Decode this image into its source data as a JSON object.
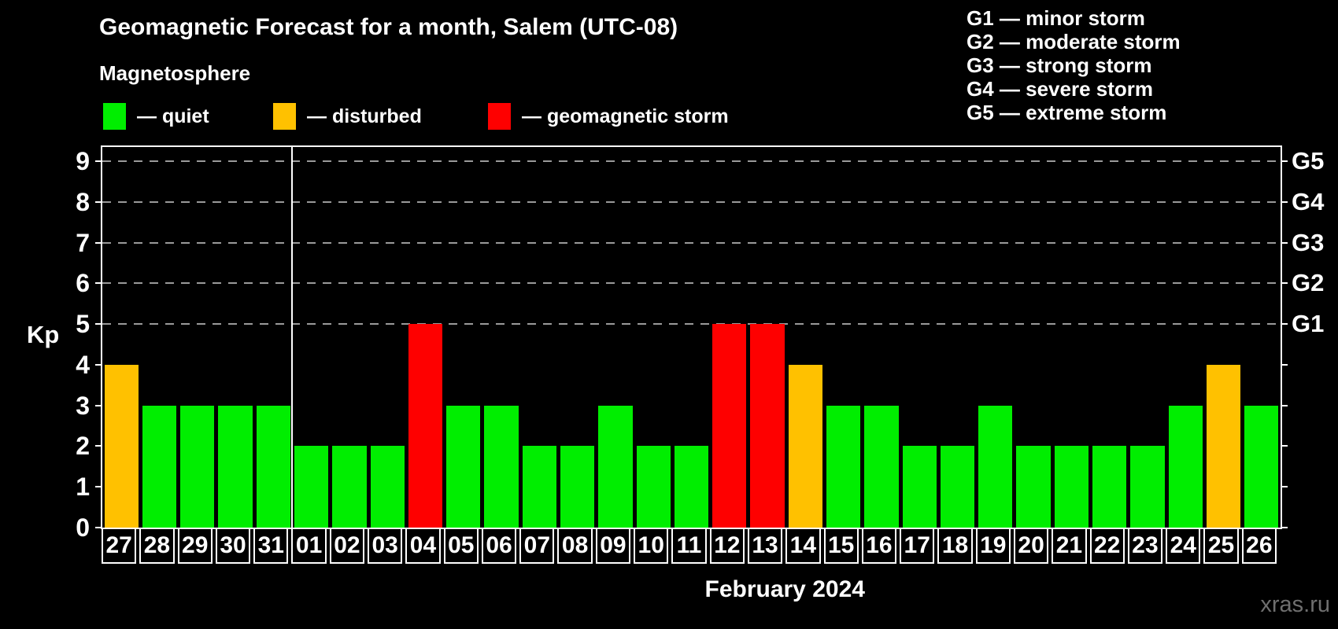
{
  "header": {
    "title": "Geomagnetic Forecast for a month, Salem (UTC-08)",
    "subtitle": "Magnetosphere"
  },
  "legend": {
    "items": [
      {
        "key": "quiet",
        "label": "— quiet"
      },
      {
        "key": "disturbed",
        "label": "— disturbed"
      },
      {
        "key": "storm",
        "label": "— geomagnetic storm"
      }
    ]
  },
  "g_scale_legend": {
    "lines": [
      "G1 — minor storm",
      "G2 — moderate storm",
      "G3 — strong storm",
      "G4 — severe storm",
      "G5 — extreme storm"
    ]
  },
  "colors": {
    "background": "#000000",
    "quiet": "#00ee00",
    "disturbed": "#ffc100",
    "storm": "#fe0000",
    "axis": "#ffffff",
    "grid": "#9a9a9a",
    "watermark": "#6f6f6f"
  },
  "chart_data": {
    "type": "bar",
    "title": "Geomagnetic Forecast for a month, Salem (UTC-08)",
    "xlabel": "February 2024",
    "ylabel": "Kp",
    "ylim": [
      0,
      9.35
    ],
    "grid": "dashed horizontal at Kp 5-9",
    "gridline_levels": [
      5,
      6,
      7,
      8,
      9
    ],
    "y_ticks": [
      0,
      1,
      2,
      3,
      4,
      5,
      6,
      7,
      8,
      9
    ],
    "right_scale": [
      {
        "label": "G1",
        "kp": 5
      },
      {
        "label": "G2",
        "kp": 6
      },
      {
        "label": "G3",
        "kp": 7
      },
      {
        "label": "G4",
        "kp": 8
      },
      {
        "label": "G5",
        "kp": 9
      }
    ],
    "categories": [
      "27",
      "28",
      "29",
      "30",
      "31",
      "01",
      "02",
      "03",
      "04",
      "05",
      "06",
      "07",
      "08",
      "09",
      "10",
      "11",
      "12",
      "13",
      "14",
      "15",
      "16",
      "17",
      "18",
      "19",
      "20",
      "21",
      "22",
      "23",
      "24",
      "25",
      "26"
    ],
    "values": [
      4,
      3,
      3,
      3,
      3,
      2,
      2,
      2,
      5,
      3,
      3,
      2,
      2,
      3,
      2,
      2,
      5,
      5,
      4,
      3,
      3,
      2,
      2,
      3,
      2,
      2,
      2,
      2,
      3,
      4,
      3
    ],
    "statuses": [
      "disturbed",
      "quiet",
      "quiet",
      "quiet",
      "quiet",
      "quiet",
      "quiet",
      "quiet",
      "storm",
      "quiet",
      "quiet",
      "quiet",
      "quiet",
      "quiet",
      "quiet",
      "quiet",
      "storm",
      "storm",
      "disturbed",
      "quiet",
      "quiet",
      "quiet",
      "quiet",
      "quiet",
      "quiet",
      "quiet",
      "quiet",
      "quiet",
      "quiet",
      "disturbed",
      "quiet"
    ],
    "month_separator_after_index": 4,
    "legend_position": "top-left",
    "month_label_centered_over": "february-days"
  },
  "footer": {
    "month_label": "February 2024",
    "watermark": "xras.ru"
  }
}
